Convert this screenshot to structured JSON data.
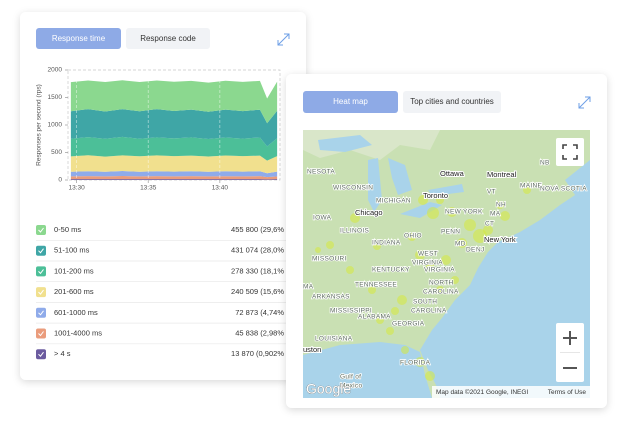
{
  "left_panel": {
    "tabs": [
      "Response time",
      "Response code"
    ]
  },
  "chart_data": {
    "type": "area",
    "stacked": true,
    "y_label": "Responses per second (rps)",
    "x": [
      29.6,
      30.8,
      32,
      33.2,
      34.4,
      35.6,
      36.8,
      38,
      39.2,
      40.4,
      41.6,
      42.8,
      43.3,
      44
    ],
    "xlim": [
      29.4,
      44.2
    ],
    "xticks": [
      {
        "value": 30,
        "label": "13:30"
      },
      {
        "value": 35,
        "label": "13:35"
      },
      {
        "value": 40,
        "label": "13:40"
      }
    ],
    "ylim": [
      0,
      2000
    ],
    "yticks": [
      0,
      500,
      1000,
      1500,
      2000
    ],
    "grid": "x",
    "series": [
      {
        "name": "0-50 ms",
        "color": "#8bd88f",
        "values": [
          530,
          520,
          535,
          525,
          530,
          520,
          533,
          522,
          530,
          524,
          530,
          525,
          450,
          530
        ]
      },
      {
        "name": "51-100 ms",
        "color": "#3fa6a6",
        "values": [
          500,
          510,
          495,
          505,
          500,
          512,
          498,
          506,
          495,
          508,
          500,
          505,
          420,
          500
        ]
      },
      {
        "name": "101-200 ms",
        "color": "#4cbf98",
        "values": [
          320,
          330,
          325,
          335,
          320,
          328,
          322,
          330,
          318,
          326,
          320,
          330,
          260,
          325
        ]
      },
      {
        "name": "201-600 ms",
        "color": "#f1e08e",
        "values": [
          280,
          290,
          275,
          285,
          280,
          290,
          282,
          286,
          278,
          288,
          280,
          285,
          230,
          280
        ]
      },
      {
        "name": "601-1000 ms",
        "color": "#8fabea",
        "values": [
          85,
          88,
          84,
          90,
          86,
          88,
          85,
          87,
          84,
          89,
          86,
          88,
          70,
          86
        ]
      },
      {
        "name": "1001-4000 ms",
        "color": "#ea9c7c",
        "values": [
          50,
          55,
          52,
          56,
          50,
          54,
          52,
          55,
          50,
          53,
          52,
          54,
          40,
          52
        ]
      },
      {
        "name": "> 4 s",
        "color": "#6b5b9f",
        "values": [
          15,
          16,
          15,
          17,
          15,
          16,
          15,
          16,
          15,
          16,
          15,
          16,
          12,
          15
        ]
      }
    ]
  },
  "stats": [
    "455 800 (29,6%",
    "431 074 (28,0%",
    "278 330 (18,1%",
    "240 509 (15,6%",
    "72 873 (4,74%",
    "45 838 (2,98%",
    "13 870 (0,902%"
  ],
  "right_panel": {
    "tabs": [
      "Heat map",
      "Top cities and countries"
    ]
  },
  "map": {
    "labels": [
      "NESOTA",
      "WISCONSIN",
      "MICHIGAN",
      "Ottawa",
      "Montreal",
      "NB",
      "MAINE",
      "NOVA SCOTIA",
      "Toronto",
      "NEW YORK",
      "VT",
      "NH",
      "MA",
      "CT",
      "New York",
      "IOWA",
      "Chicago",
      "ILLINOIS",
      "INDIANA",
      "OHIO",
      "PENN",
      "MD",
      "DE",
      "NJ",
      "MISSOURI",
      "WEST",
      "VIRGINIA",
      "KENTUCKY",
      "VIRGINIA",
      "TENNESSEE",
      "NORTH",
      "CAROLINA",
      "MA",
      "ARKANSAS",
      "SOUTH",
      "CAROLINA",
      "MISSISSIPPI",
      "ALABAMA",
      "GEORGIA",
      "LOUISIANA",
      "uston",
      "FLORIDA",
      "Gulf of",
      "Mexico"
    ],
    "logo": "Google",
    "attribution": "Map data ©2021 Google, INEGI",
    "terms": "Terms of Use"
  }
}
